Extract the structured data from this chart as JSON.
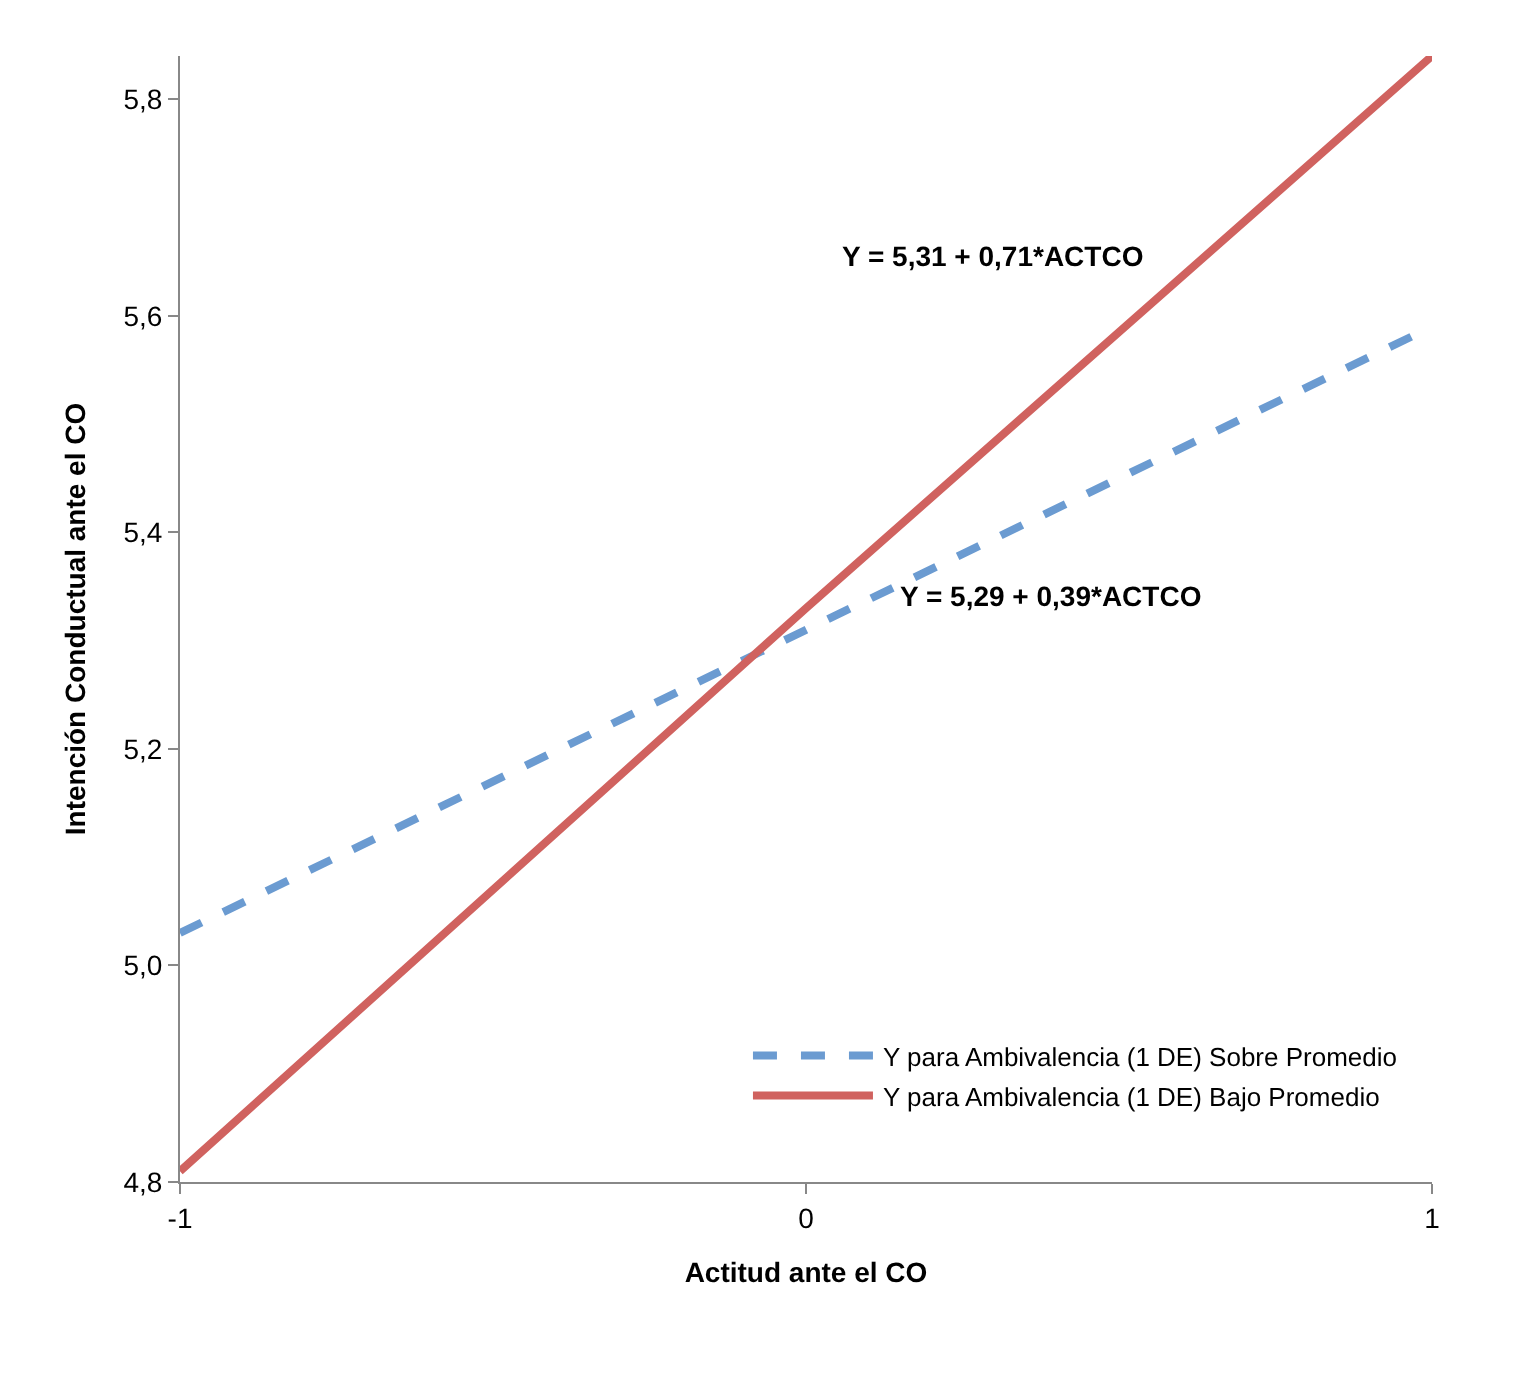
{
  "chart_data": {
    "type": "line",
    "xlabel": "Actitud ante el CO",
    "ylabel": "Intención Conductual ante el CO",
    "x": [
      -1,
      0,
      1
    ],
    "series": [
      {
        "name": "Y para Ambivalencia (1 DE) Sobre Promedio",
        "color": "#6b9bd1",
        "values": [
          5.03,
          5.31,
          5.59
        ],
        "line_style": "dashed"
      },
      {
        "name": "Y para Ambivalencia (1 DE) Bajo Promedio",
        "color": "#d0625f",
        "values": [
          4.81,
          5.33,
          5.84
        ],
        "line_style": "solid"
      }
    ],
    "annotations": [
      "Y = 5,31 + 0,71*ACTCO",
      "Y = 5,29 + 0,39*ACTCO"
    ],
    "xlim": [
      -1,
      1
    ],
    "xticks": [
      {
        "value": -1,
        "label": "-1"
      },
      {
        "value": 0,
        "label": "0"
      },
      {
        "value": 1,
        "label": "1"
      }
    ],
    "ylim": [
      4.8,
      5.84
    ],
    "yticks": [
      {
        "value": 4.8,
        "label": "4,8"
      },
      {
        "value": 5.0,
        "label": "5,0"
      },
      {
        "value": 5.2,
        "label": "5,2"
      },
      {
        "value": 5.4,
        "label": "5,4"
      },
      {
        "value": 5.6,
        "label": "5,6"
      },
      {
        "value": 5.8,
        "label": "5,8"
      }
    ],
    "legend": "bottom right",
    "marker": "none"
  }
}
